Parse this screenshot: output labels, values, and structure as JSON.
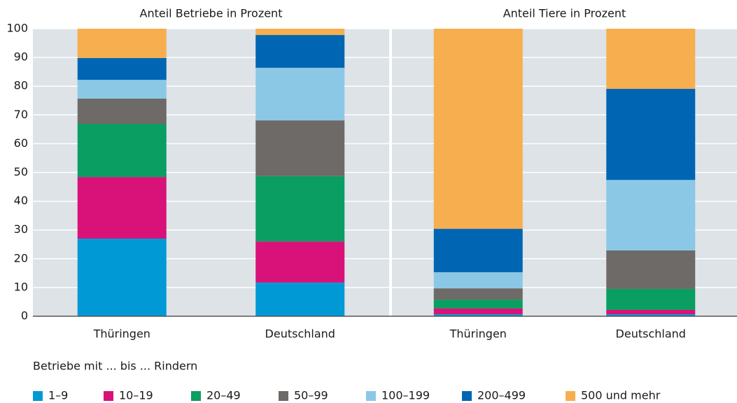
{
  "chart_data": {
    "type": "stacked_bar",
    "groups": [
      "Anteil Betriebe in Prozent",
      "Anteil Tiere in Prozent"
    ],
    "categories": [
      "Thüringen",
      "Deutschland",
      "Thüringen",
      "Deutschland"
    ],
    "legend_title": "Betriebe mit ... bis ... Rindern",
    "series": [
      {
        "name": "1–9",
        "color": "#0099d6",
        "values": [
          27.0,
          11.7,
          0.7,
          0.7
        ]
      },
      {
        "name": "10–19",
        "color": "#d9127a",
        "values": [
          21.4,
          14.3,
          2.0,
          1.5
        ]
      },
      {
        "name": "20–49",
        "color": "#0a9e62",
        "values": [
          18.5,
          22.7,
          3.1,
          7.3
        ]
      },
      {
        "name": "50–99",
        "color": "#6e6a67",
        "values": [
          8.8,
          19.4,
          3.9,
          13.4
        ]
      },
      {
        "name": "100–199",
        "color": "#8bc8e6",
        "values": [
          6.5,
          18.3,
          5.6,
          24.5
        ]
      },
      {
        "name": "200–499",
        "color": "#0066b3",
        "values": [
          7.6,
          11.4,
          15.1,
          31.7
        ]
      },
      {
        "name": "500 und mehr",
        "color": "#f6ae4f",
        "values": [
          10.2,
          2.2,
          69.6,
          20.9
        ]
      }
    ],
    "ylim": [
      0,
      100
    ],
    "yticks": [
      0,
      10,
      20,
      30,
      40,
      50,
      60,
      70,
      80,
      90,
      100
    ],
    "grid": true
  }
}
